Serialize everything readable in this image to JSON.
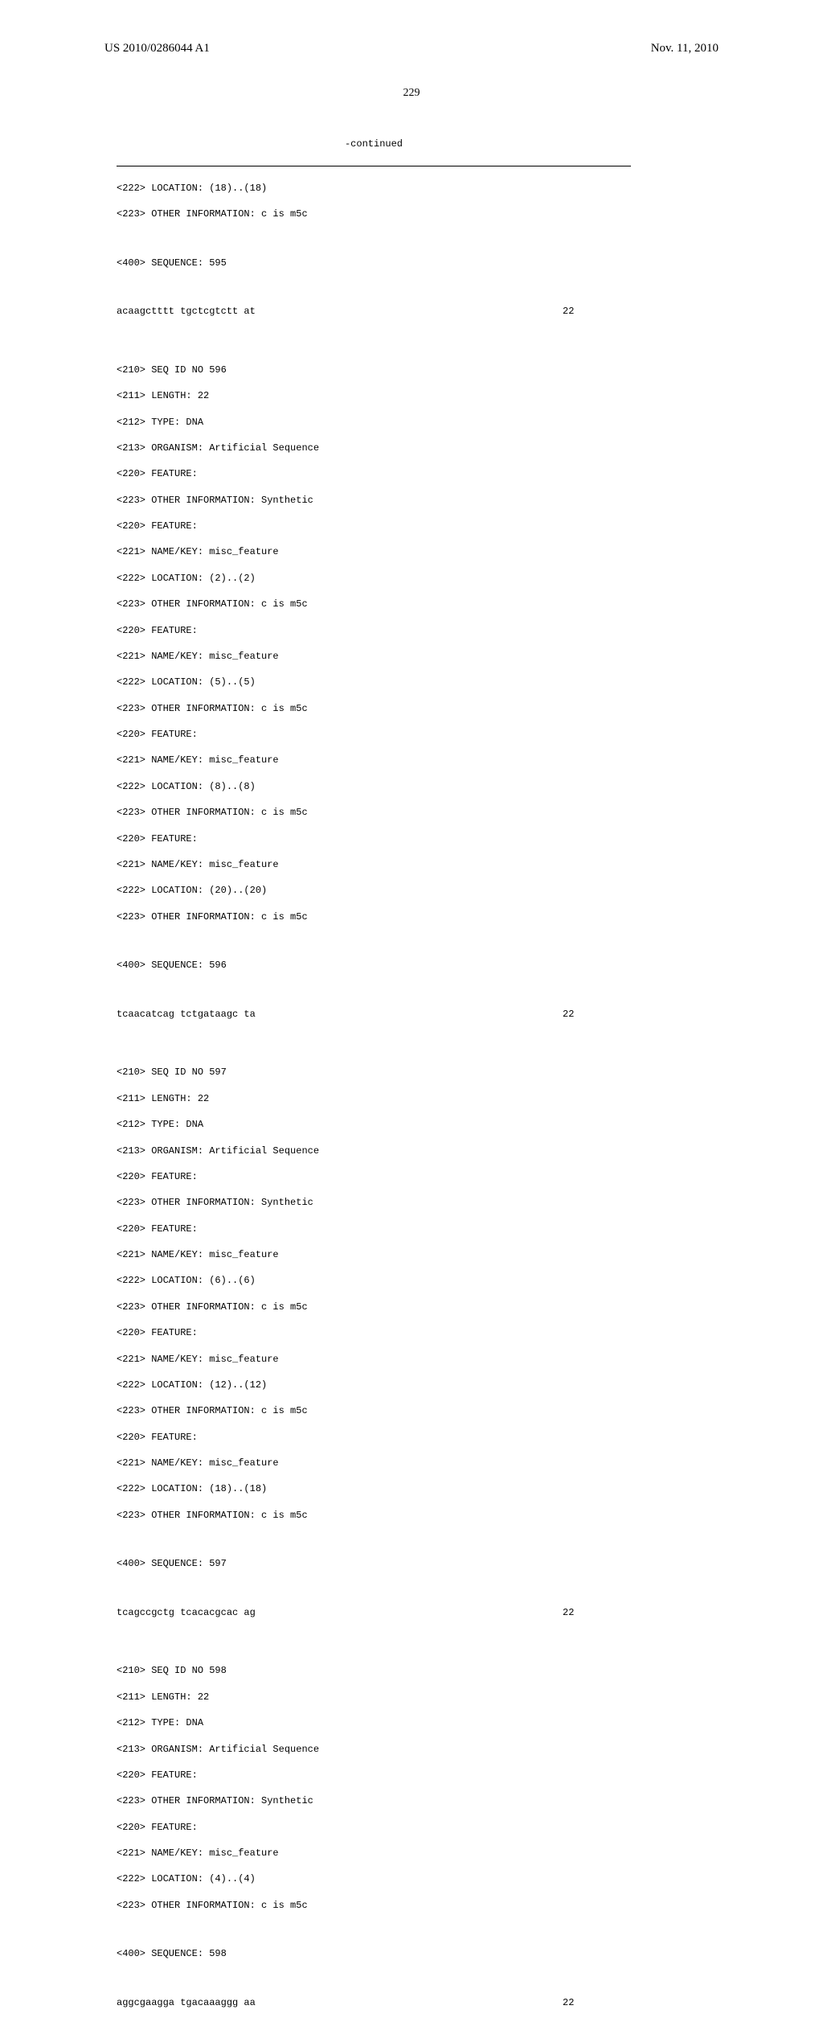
{
  "header": {
    "pub_number": "US 2010/0286044 A1",
    "pub_date": "Nov. 11, 2010",
    "page": "229"
  },
  "continued": "-continued",
  "seq595": {
    "loc": "<222> LOCATION: (18)..(18)",
    "info": "<223> OTHER INFORMATION: c is m5c",
    "seqlabel": "<400> SEQUENCE: 595",
    "seq": "acaagctttt tgctcgtctt at",
    "num": "22"
  },
  "seq596": {
    "l1": "<210> SEQ ID NO 596",
    "l2": "<211> LENGTH: 22",
    "l3": "<212> TYPE: DNA",
    "l4": "<213> ORGANISM: Artificial Sequence",
    "l5": "<220> FEATURE:",
    "l6": "<223> OTHER INFORMATION: Synthetic",
    "l7": "<220> FEATURE:",
    "l8": "<221> NAME/KEY: misc_feature",
    "l9": "<222> LOCATION: (2)..(2)",
    "l10": "<223> OTHER INFORMATION: c is m5c",
    "l11": "<220> FEATURE:",
    "l12": "<221> NAME/KEY: misc_feature",
    "l13": "<222> LOCATION: (5)..(5)",
    "l14": "<223> OTHER INFORMATION: c is m5c",
    "l15": "<220> FEATURE:",
    "l16": "<221> NAME/KEY: misc_feature",
    "l17": "<222> LOCATION: (8)..(8)",
    "l18": "<223> OTHER INFORMATION: c is m5c",
    "l19": "<220> FEATURE:",
    "l20": "<221> NAME/KEY: misc_feature",
    "l21": "<222> LOCATION: (20)..(20)",
    "l22": "<223> OTHER INFORMATION: c is m5c",
    "seqlabel": "<400> SEQUENCE: 596",
    "seq": "tcaacatcag tctgataagc ta",
    "num": "22"
  },
  "seq597": {
    "l1": "<210> SEQ ID NO 597",
    "l2": "<211> LENGTH: 22",
    "l3": "<212> TYPE: DNA",
    "l4": "<213> ORGANISM: Artificial Sequence",
    "l5": "<220> FEATURE:",
    "l6": "<223> OTHER INFORMATION: Synthetic",
    "l7": "<220> FEATURE:",
    "l8": "<221> NAME/KEY: misc_feature",
    "l9": "<222> LOCATION: (6)..(6)",
    "l10": "<223> OTHER INFORMATION: c is m5c",
    "l11": "<220> FEATURE:",
    "l12": "<221> NAME/KEY: misc_feature",
    "l13": "<222> LOCATION: (12)..(12)",
    "l14": "<223> OTHER INFORMATION: c is m5c",
    "l15": "<220> FEATURE:",
    "l16": "<221> NAME/KEY: misc_feature",
    "l17": "<222> LOCATION: (18)..(18)",
    "l18": "<223> OTHER INFORMATION: c is m5c",
    "seqlabel": "<400> SEQUENCE: 597",
    "seq": "tcagccgctg tcacacgcac ag",
    "num": "22"
  },
  "seq598": {
    "l1": "<210> SEQ ID NO 598",
    "l2": "<211> LENGTH: 22",
    "l3": "<212> TYPE: DNA",
    "l4": "<213> ORGANISM: Artificial Sequence",
    "l5": "<220> FEATURE:",
    "l6": "<223> OTHER INFORMATION: Synthetic",
    "l7": "<220> FEATURE:",
    "l8": "<221> NAME/KEY: misc_feature",
    "l9": "<222> LOCATION: (4)..(4)",
    "l10": "<223> OTHER INFORMATION: c is m5c",
    "seqlabel": "<400> SEQUENCE: 598",
    "seq": "aggcgaagga tgacaaaggg aa",
    "num": "22"
  }
}
